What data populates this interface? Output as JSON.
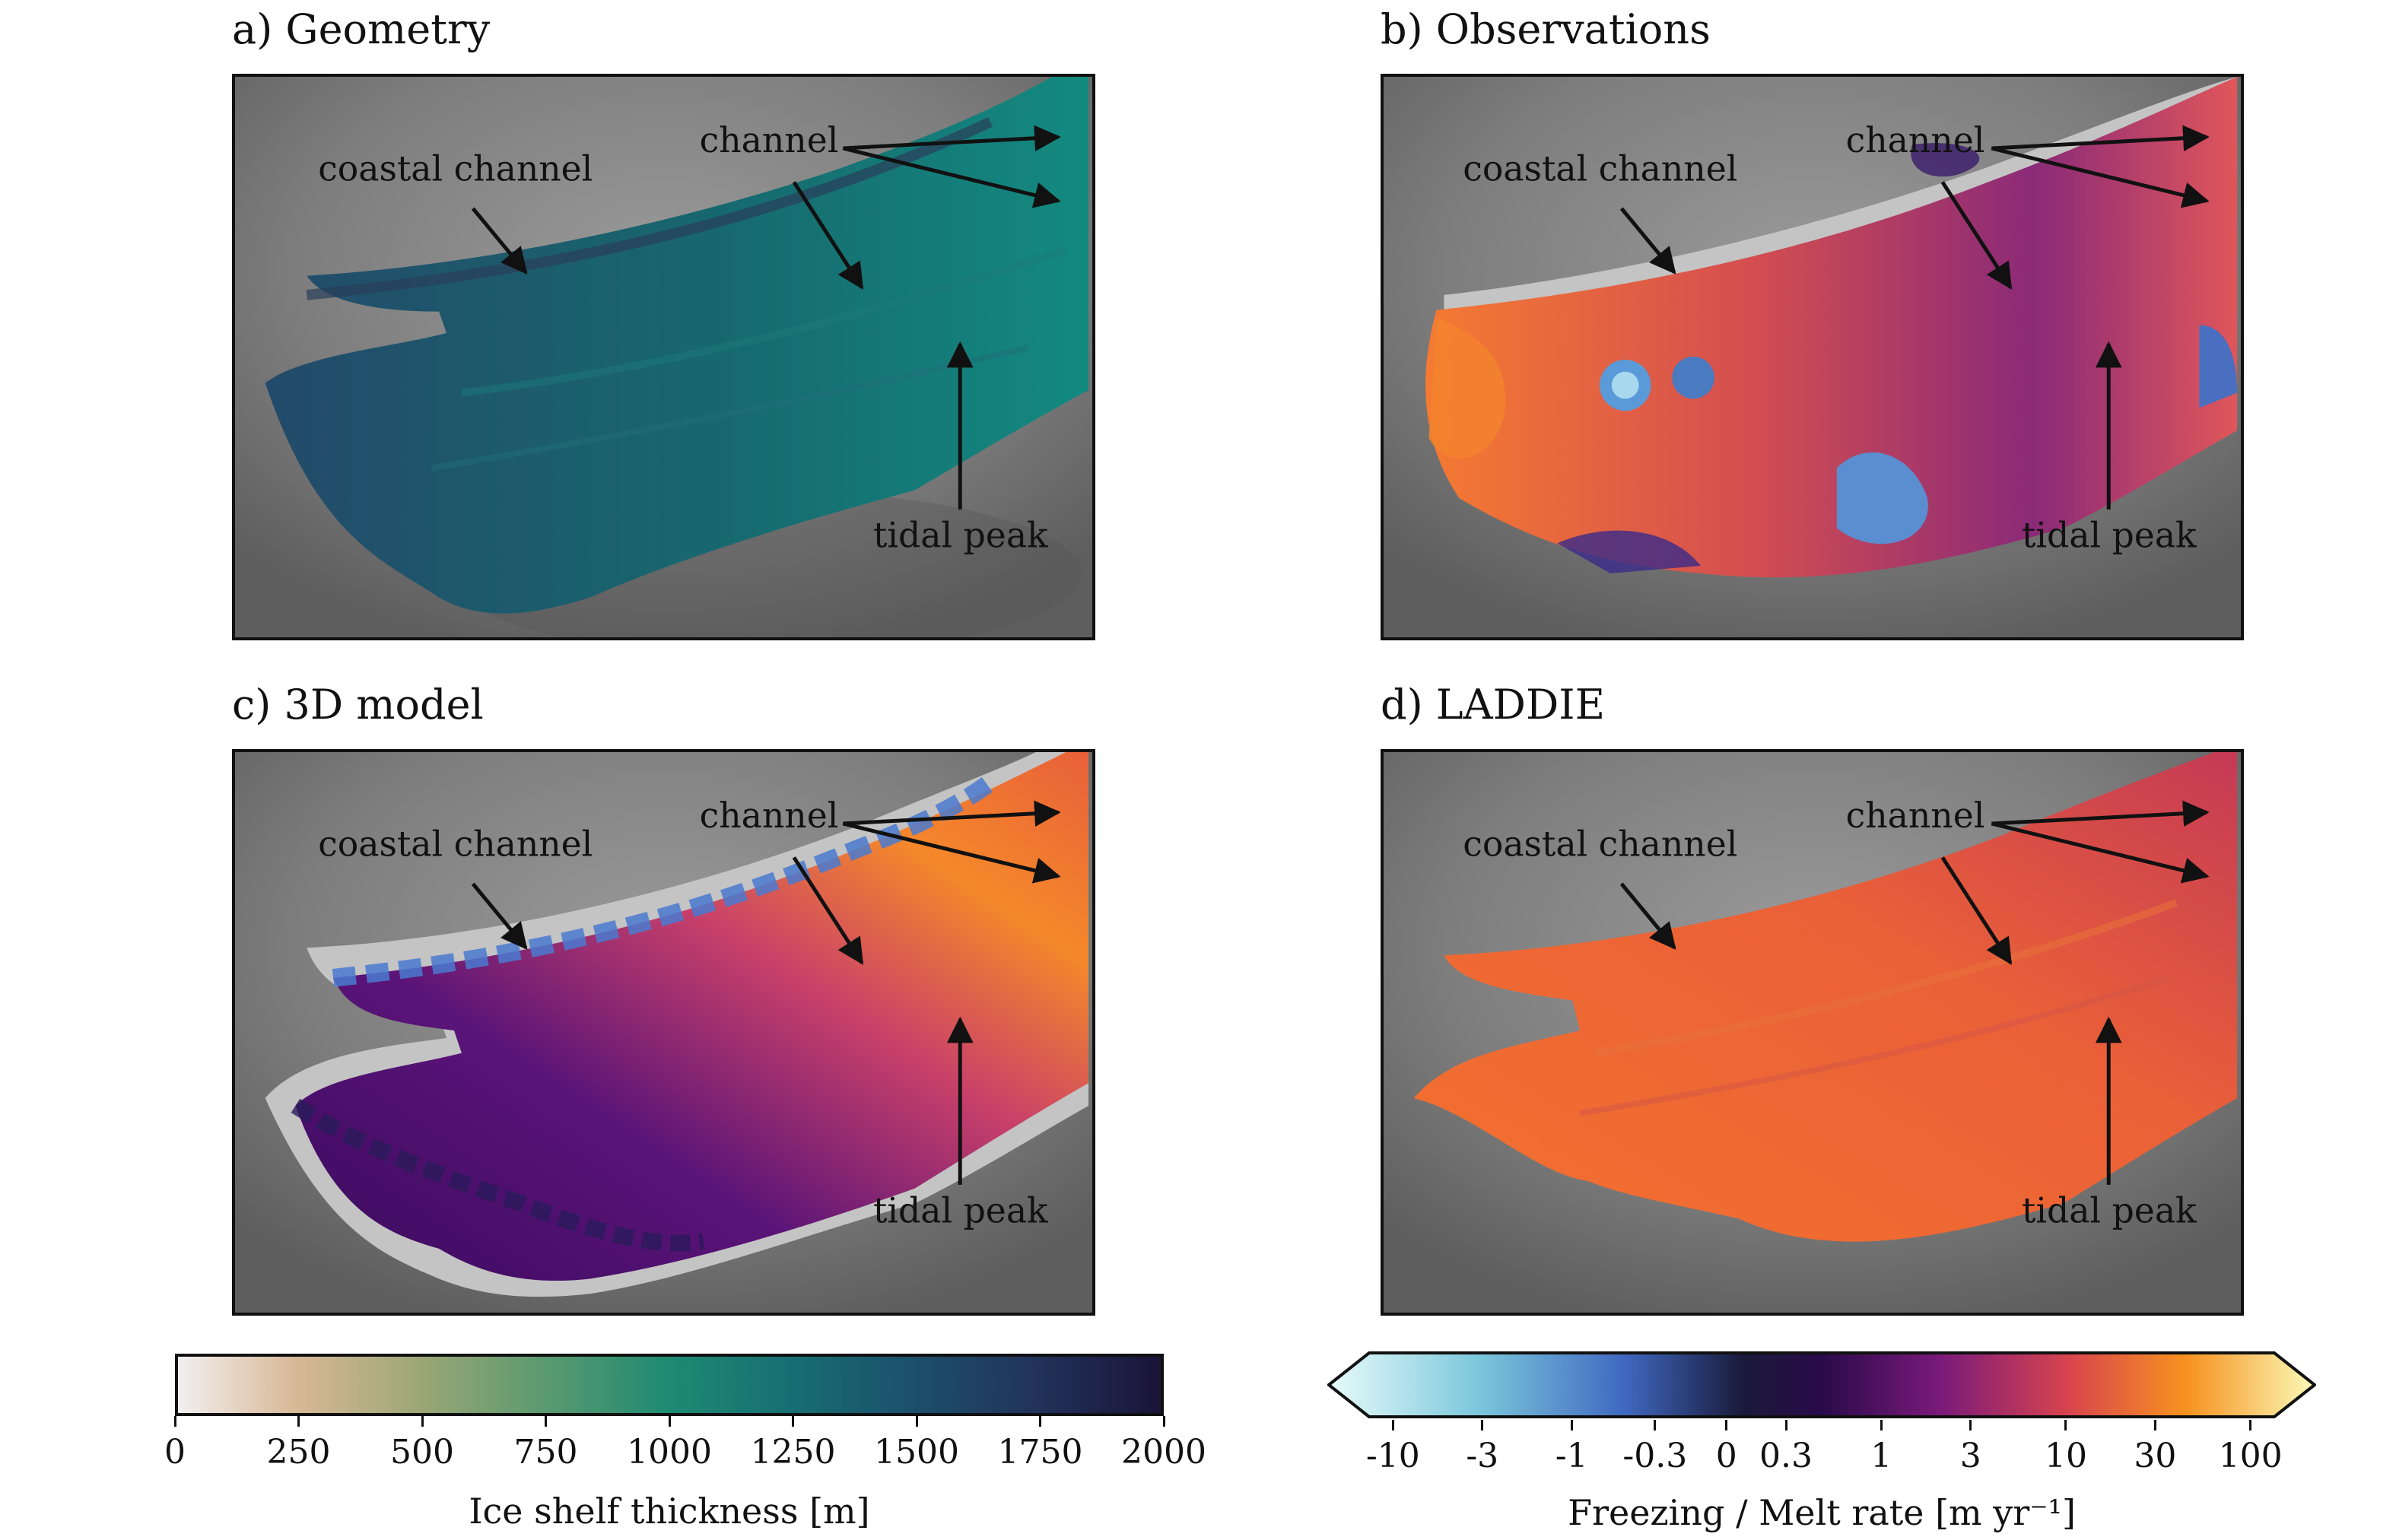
{
  "panels": [
    {
      "id": "a",
      "title": "a) Geometry"
    },
    {
      "id": "b",
      "title": "b) Observations"
    },
    {
      "id": "c",
      "title": "c) 3D model"
    },
    {
      "id": "d",
      "title": "d) LADDIE"
    }
  ],
  "annotations": {
    "coastal_channel": "coastal channel",
    "channel": "channel",
    "tidal_peak": "tidal peak"
  },
  "colorbar_thickness": {
    "label": "Ice shelf thickness [m]",
    "ticks": [
      "0",
      "250",
      "500",
      "750",
      "1000",
      "1250",
      "1500",
      "1750",
      "2000"
    ],
    "min": 0,
    "max": 2000
  },
  "colorbar_melt": {
    "label": "Freezing / Melt rate [m yr⁻¹]",
    "ticks": [
      "-10",
      "-3",
      "-1",
      "-0.3",
      "0",
      "0.3",
      "1",
      "3",
      "10",
      "30",
      "100"
    ],
    "extend": "both"
  },
  "colors": {
    "background_gray": "#7a7a7a",
    "ice_teal": "#1f7e80",
    "melt_orange": "#f0703a",
    "melt_purple": "#6a1f7a",
    "freeze_blue": "#5a8fd0",
    "no_data": "#c4c4c4"
  }
}
